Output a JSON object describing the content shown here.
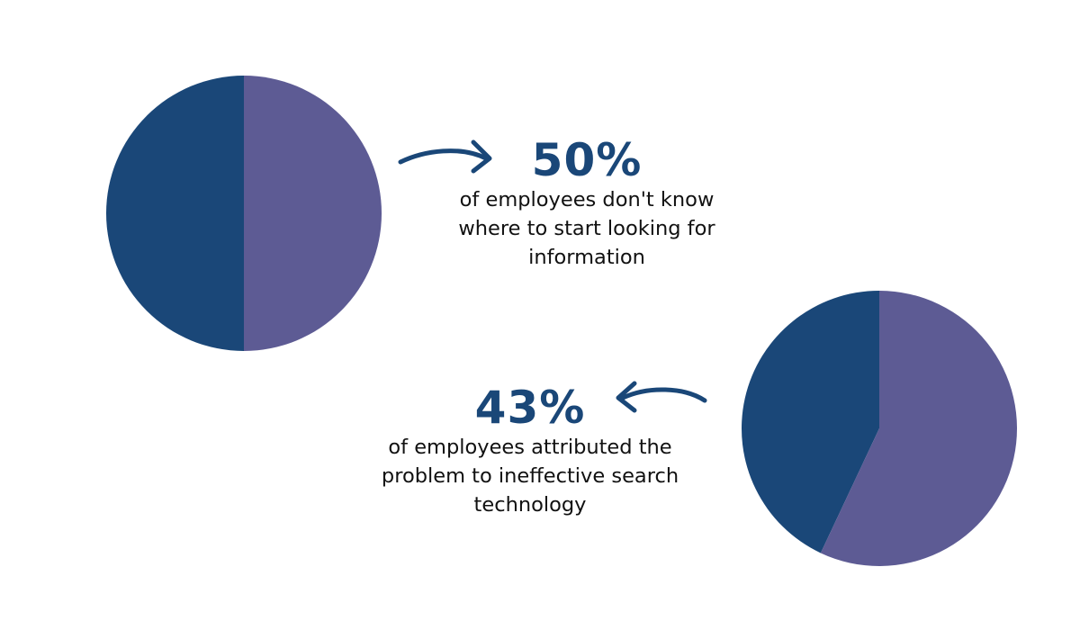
{
  "colors": {
    "primary": "#1a4778",
    "secondary": "#5d5b94"
  },
  "chart_data": [
    {
      "type": "pie",
      "slices": [
        {
          "label": "",
          "value": 50,
          "color": "#1a4778"
        },
        {
          "label": "",
          "value": 50,
          "color": "#5d5b94"
        }
      ]
    },
    {
      "type": "pie",
      "slices": [
        {
          "label": "",
          "value": 43,
          "color": "#1a4778"
        },
        {
          "label": "",
          "value": 57,
          "color": "#5d5b94"
        }
      ]
    }
  ],
  "stats": [
    {
      "percent": "50%",
      "description": "of employees don't know where to start looking for information"
    },
    {
      "percent": "43%",
      "description": "of employees attributed the problem to ineffective search technology"
    }
  ]
}
